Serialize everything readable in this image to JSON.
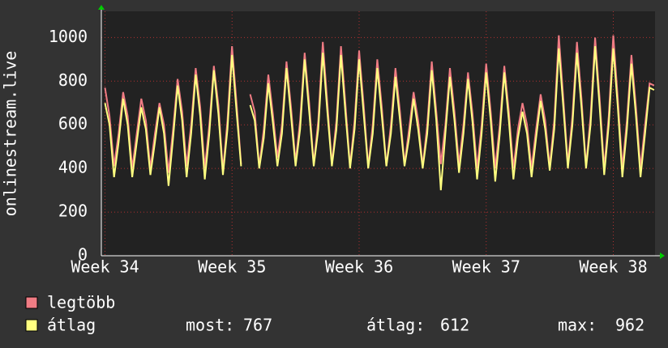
{
  "chart_data": {
    "type": "line",
    "y_label": "onlinestream.live",
    "x": [
      0.2,
      0.45,
      0.7,
      0.95,
      1.2,
      1.45,
      1.7,
      1.95,
      2.2,
      2.45,
      2.7,
      2.95,
      3.2,
      3.45,
      3.7,
      3.95,
      4.2,
      4.45,
      4.7,
      4.95,
      5.2,
      5.45,
      5.7,
      5.95,
      6.2,
      6.45,
      6.7,
      6.95,
      7.2,
      7.45,
      7.7,
      7.95,
      8.2,
      8.45,
      8.7,
      8.95,
      9.2,
      9.45,
      9.7,
      9.95,
      10.2,
      10.45,
      10.7,
      10.95,
      11.2,
      11.45,
      11.7,
      11.95,
      12.2,
      12.45,
      12.7,
      12.95,
      13.2,
      13.45,
      13.7,
      13.95,
      14.2,
      14.45,
      14.7,
      14.95,
      15.2,
      15.45,
      15.7,
      15.95,
      16.2,
      16.45,
      16.7,
      16.95,
      17.2,
      17.45,
      17.7,
      17.95,
      18.2,
      18.45,
      18.7,
      18.95,
      19.2,
      19.45,
      19.7,
      19.95,
      20.2,
      20.45,
      20.7,
      20.95,
      21.2,
      21.45,
      21.7,
      21.95,
      22.2,
      22.45,
      22.7,
      22.95,
      23.2,
      23.45,
      23.7,
      23.95,
      24.2,
      24.45,
      24.7,
      24.95,
      25.2,
      25.45,
      25.7,
      25.95,
      26.2,
      26.45,
      26.7,
      26.95,
      27.2,
      27.45,
      27.7,
      27.95,
      28.2,
      28.45,
      28.7,
      28.95,
      29.2,
      29.45,
      29.7,
      29.95,
      30.2,
      30.45
    ],
    "series": [
      {
        "name": "legtöbb",
        "color": "#f07c84",
        "values": [
          770,
          640,
          410,
          560,
          750,
          640,
          400,
          560,
          720,
          620,
          400,
          560,
          700,
          600,
          380,
          580,
          810,
          660,
          410,
          600,
          860,
          680,
          400,
          600,
          870,
          690,
          390,
          620,
          960,
          700,
          420,
          null,
          740,
          660,
          410,
          580,
          830,
          650,
          450,
          600,
          890,
          680,
          430,
          620,
          930,
          700,
          420,
          620,
          980,
          700,
          420,
          620,
          960,
          690,
          410,
          620,
          940,
          690,
          410,
          600,
          900,
          680,
          410,
          600,
          860,
          660,
          420,
          580,
          750,
          620,
          410,
          600,
          890,
          660,
          420,
          600,
          860,
          660,
          420,
          600,
          840,
          650,
          400,
          600,
          880,
          660,
          400,
          600,
          870,
          660,
          400,
          580,
          700,
          600,
          400,
          580,
          740,
          620,
          410,
          620,
          1010,
          720,
          420,
          640,
          980,
          720,
          410,
          640,
          1000,
          720,
          400,
          640,
          1010,
          720,
          400,
          620,
          920,
          680,
          400,
          600,
          790,
          780
        ]
      },
      {
        "name": "átlag",
        "color": "#ffff80",
        "values": [
          700,
          600,
          360,
          520,
          720,
          600,
          360,
          520,
          680,
          580,
          370,
          520,
          680,
          560,
          320,
          540,
          780,
          620,
          360,
          560,
          830,
          640,
          350,
          560,
          850,
          650,
          370,
          580,
          920,
          660,
          410,
          null,
          690,
          620,
          400,
          540,
          790,
          610,
          410,
          560,
          860,
          640,
          410,
          580,
          900,
          660,
          410,
          580,
          930,
          660,
          410,
          580,
          920,
          650,
          400,
          580,
          900,
          650,
          400,
          560,
          860,
          640,
          410,
          560,
          820,
          620,
          410,
          540,
          720,
          580,
          400,
          560,
          850,
          620,
          300,
          560,
          820,
          620,
          380,
          560,
          810,
          610,
          350,
          560,
          840,
          620,
          340,
          560,
          840,
          620,
          350,
          540,
          660,
          560,
          360,
          540,
          710,
          580,
          390,
          580,
          950,
          680,
          400,
          600,
          930,
          680,
          400,
          600,
          960,
          680,
          370,
          600,
          950,
          680,
          360,
          580,
          880,
          640,
          360,
          560,
          770,
          760
        ]
      }
    ],
    "xlim": [
      0,
      30.5
    ],
    "xticks": [
      {
        "value": 0.2,
        "label": "Week 34"
      },
      {
        "value": 7.2,
        "label": "Week 35"
      },
      {
        "value": 14.2,
        "label": "Week 36"
      },
      {
        "value": 21.2,
        "label": "Week 37"
      },
      {
        "value": 28.2,
        "label": "Week 38"
      }
    ],
    "ylim": [
      0,
      1120
    ],
    "yticks": [
      0,
      200,
      400,
      600,
      800,
      1000
    ],
    "grid": true,
    "stats": [
      {
        "label": "most:",
        "value": 767
      },
      {
        "label": "átlag:",
        "value": 612
      },
      {
        "label": "max:",
        "value": 962
      }
    ]
  }
}
